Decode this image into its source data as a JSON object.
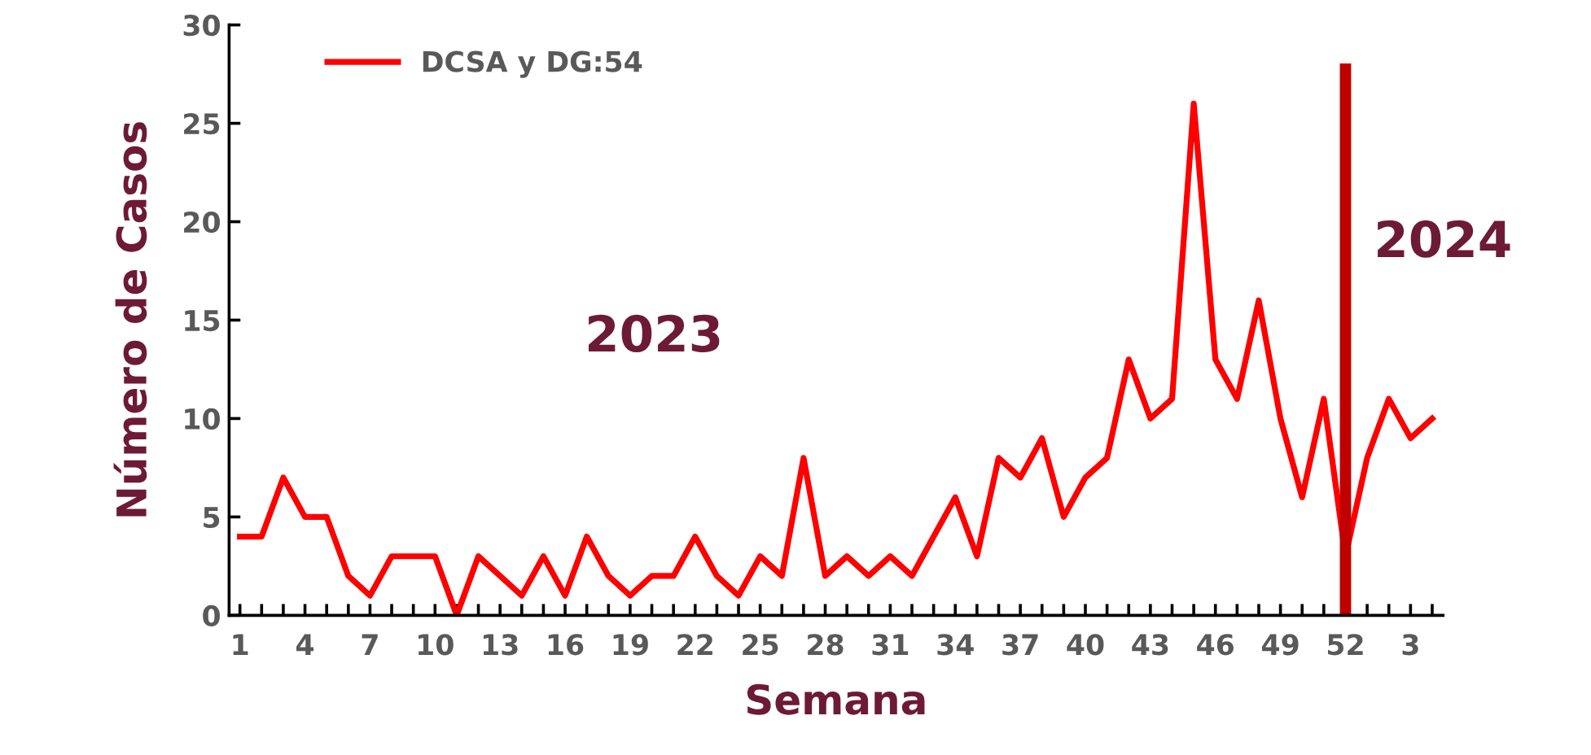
{
  "chart_data": {
    "type": "line",
    "xlabel": "Semana",
    "ylabel": "Número de Casos",
    "categories": [
      "1",
      null,
      null,
      "4",
      null,
      null,
      "7",
      null,
      null,
      "10",
      null,
      null,
      "13",
      null,
      null,
      "16",
      null,
      null,
      "19",
      null,
      null,
      "22",
      null,
      null,
      "25",
      null,
      null,
      "28",
      null,
      null,
      "31",
      null,
      null,
      "34",
      null,
      null,
      "37",
      null,
      null,
      "40",
      null,
      null,
      "43",
      null,
      null,
      "46",
      null,
      null,
      "49",
      null,
      null,
      "52",
      null,
      null,
      "3",
      null
    ],
    "series": [
      {
        "name": "DCSA y DG:54",
        "color": "#ff0000",
        "values": [
          4,
          4,
          7,
          5,
          5,
          2,
          1,
          3,
          3,
          3,
          0,
          3,
          2,
          1,
          3,
          1,
          4,
          2,
          1,
          2,
          2,
          4,
          2,
          1,
          3,
          2,
          8,
          2,
          3,
          2,
          3,
          2,
          4,
          6,
          3,
          8,
          7,
          9,
          5,
          7,
          8,
          13,
          10,
          11,
          26,
          13,
          11,
          16,
          10,
          6,
          11,
          3,
          8,
          11,
          9,
          10
        ]
      }
    ],
    "ylim": [
      0,
      30
    ],
    "yticks": [
      0,
      5,
      10,
      15,
      20,
      25,
      30
    ],
    "ref_lines": [
      {
        "axis": "x",
        "value": "52",
        "color": "#c00000"
      }
    ],
    "annotations": [
      "2023",
      "2024"
    ],
    "legend": "top left",
    "grid": false,
    "marker": "none",
    "line_style": "solid"
  }
}
